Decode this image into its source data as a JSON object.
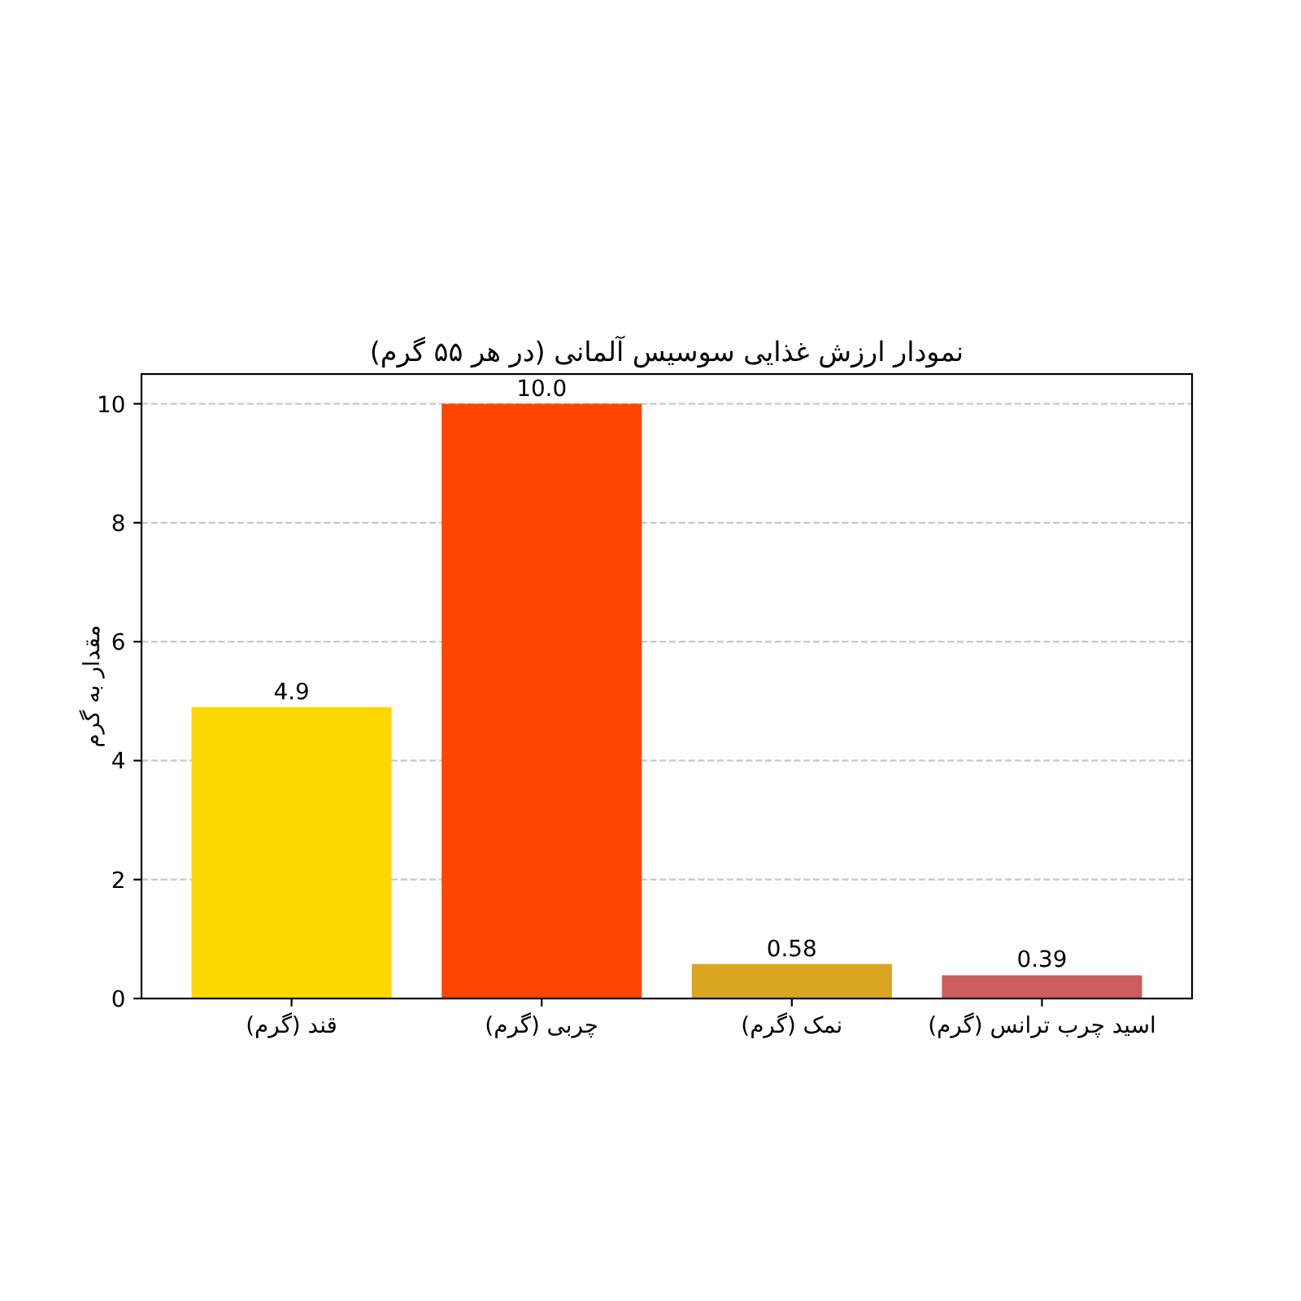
{
  "chart_data": {
    "type": "bar",
    "title": "نمودار ارزش غذایی سوسیس آلمانی (در هر ۵۵ گرم)",
    "ylabel": "مقدار به گرم",
    "categories": [
      "قند (گرم)",
      "چربی (گرم)",
      "نمک (گرم)",
      "اسید چرب ترانس (گرم)"
    ],
    "values": [
      4.9,
      10.0,
      0.58,
      0.39
    ],
    "colors": [
      "#ffd700",
      "#ff4500",
      "#daa520",
      "#cd5c5c"
    ],
    "value_labels": [
      "4.9",
      "10.0",
      "0.58",
      "0.39"
    ],
    "ylim": [
      0,
      10.5
    ],
    "yticks": [
      0,
      2,
      4,
      6,
      8,
      10
    ],
    "grid": "y"
  }
}
